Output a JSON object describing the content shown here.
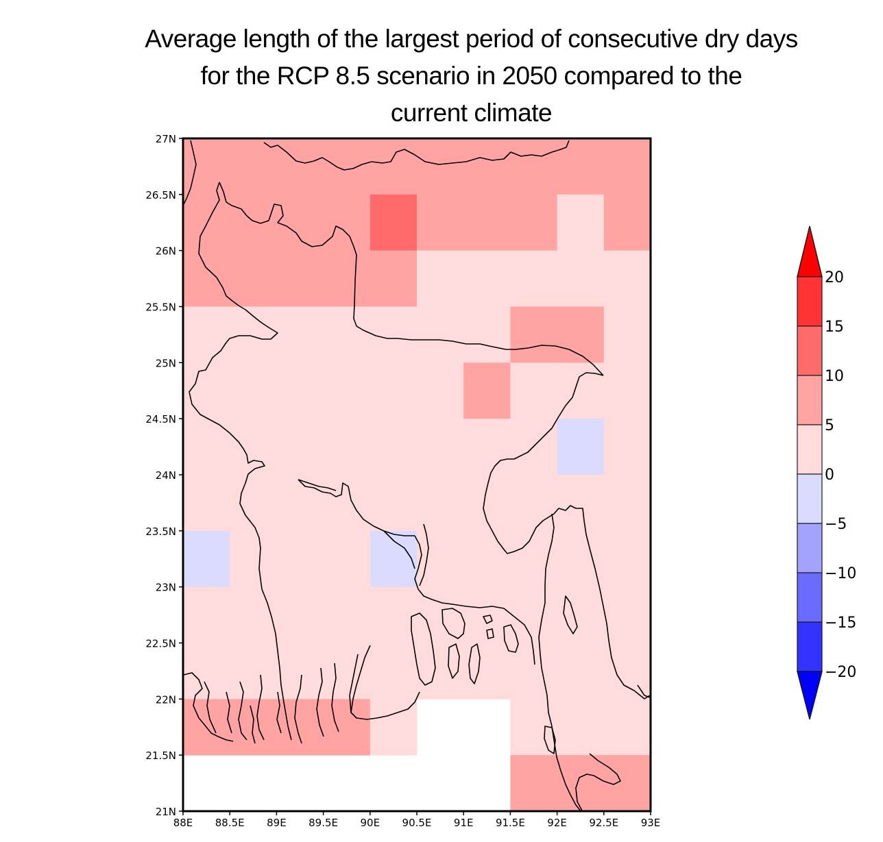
{
  "title_lines": [
    "Average length of the largest period of consecutive dry days",
    "for the RCP 8.5 scenario in 2050 compared to the",
    "current climate"
  ],
  "map": {
    "lon_range": [
      88,
      93
    ],
    "lat_range": [
      21,
      27
    ],
    "cell_size_deg": 0.5,
    "x_ticks": [
      "88E",
      "88.5E",
      "89E",
      "89.5E",
      "90E",
      "90.5E",
      "91E",
      "91.5E",
      "92E",
      "92.5E",
      "93E"
    ],
    "y_ticks": [
      "21N",
      "21.5N",
      "22N",
      "22.5N",
      "23N",
      "23.5N",
      "24N",
      "24.5N",
      "25N",
      "25.5N",
      "26N",
      "26.5N",
      "27N"
    ],
    "grid_values_rows_north_to_south": [
      [
        7,
        7,
        7,
        7,
        7,
        7,
        7,
        7,
        7,
        7
      ],
      [
        7,
        7,
        7,
        7,
        12,
        7,
        7,
        7,
        2,
        7
      ],
      [
        7,
        7,
        7,
        7,
        7,
        2,
        2,
        2,
        2,
        2
      ],
      [
        2,
        2,
        2,
        2,
        2,
        2,
        2,
        7,
        7,
        2
      ],
      [
        2,
        2,
        2,
        2,
        2,
        2,
        7,
        2,
        2,
        2
      ],
      [
        2,
        2,
        2,
        2,
        2,
        2,
        2,
        2,
        -2,
        2
      ],
      [
        2,
        2,
        2,
        2,
        2,
        2,
        2,
        2,
        2,
        2
      ],
      [
        -2,
        2,
        2,
        2,
        -2,
        2,
        2,
        2,
        2,
        2
      ],
      [
        2,
        2,
        2,
        2,
        2,
        2,
        2,
        2,
        2,
        2
      ],
      [
        2,
        2,
        2,
        2,
        2,
        2,
        2,
        2,
        2,
        2
      ],
      [
        7,
        7,
        7,
        7,
        2,
        null,
        null,
        2,
        2,
        2
      ],
      [
        null,
        null,
        null,
        null,
        null,
        null,
        null,
        7,
        7,
        7
      ]
    ]
  },
  "colorbar": {
    "labels": [
      "20",
      "15",
      "10",
      "5",
      "0",
      "−5",
      "−10",
      "−15",
      "−20"
    ],
    "colors": [
      "#ff0000",
      "#ff3333",
      "#ff6b6b",
      "#ffa3a3",
      "#ffdbdb",
      "#dbdbff",
      "#a3a3ff",
      "#6b6bff",
      "#3333ff",
      "#0000ff"
    ]
  }
}
